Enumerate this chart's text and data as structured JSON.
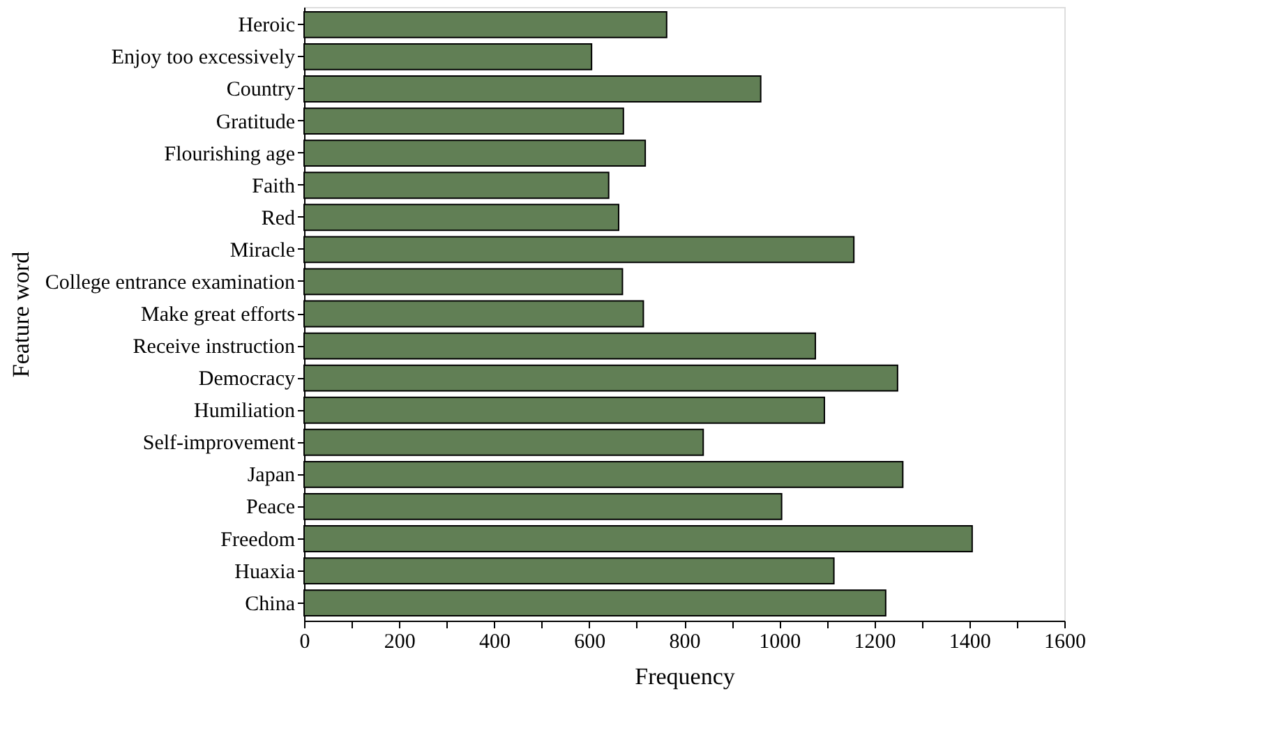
{
  "chart_data": {
    "type": "bar",
    "orientation": "horizontal",
    "xlabel": "Frequency",
    "ylabel": "Feature word",
    "categories": [
      "Heroic",
      "Enjoy too excessively",
      "Country",
      "Gratitude",
      "Flourishing age",
      "Faith",
      "Red",
      "Miracle",
      "College entrance examination",
      "Make great efforts",
      "Receive instruction",
      "Democracy",
      "Humiliation",
      "Self-improvement",
      "Japan",
      "Peace",
      "Freedom",
      "Huaxia",
      "China"
    ],
    "values": [
      763,
      605,
      961,
      672,
      718,
      641,
      662,
      1157,
      670,
      714,
      1076,
      1249,
      1095,
      840,
      1260,
      1005,
      1406,
      1115,
      1224
    ],
    "color": "#617f55",
    "xlim": [
      0,
      1600
    ],
    "xticks": [
      0,
      {
        "value": 100,
        "label": null
      },
      200,
      {
        "value": 300,
        "label": null
      },
      400,
      {
        "value": 500,
        "label": null
      },
      600,
      {
        "value": 700,
        "label": null
      },
      800,
      {
        "value": 900,
        "label": null
      },
      1000,
      {
        "value": 1100,
        "label": null
      },
      1200,
      {
        "value": 1300,
        "label": null
      },
      1400,
      {
        "value": 1500,
        "label": null
      },
      1600
    ],
    "grid": false
  }
}
